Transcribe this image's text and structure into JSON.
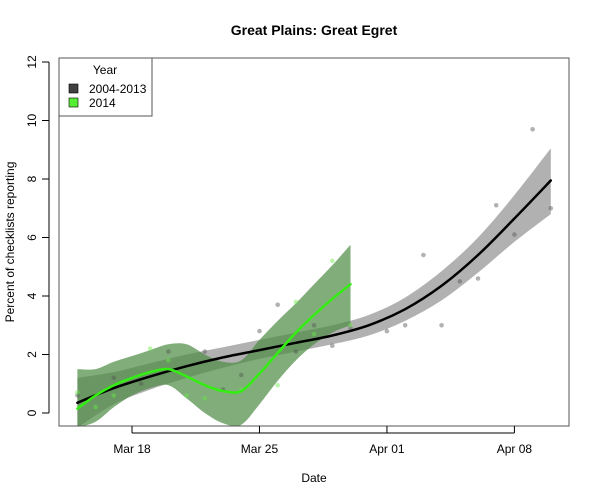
{
  "chart_data": {
    "type": "line",
    "title": "Great Plains: Great Egret",
    "xlabel": "Date",
    "ylabel": "Percent of checklists reporting",
    "ylim": [
      0,
      12
    ],
    "yticks": [
      0,
      2,
      4,
      6,
      8,
      10,
      12
    ],
    "xticks": [
      {
        "label": "Mar 18",
        "day": 18
      },
      {
        "label": "Mar 25",
        "day": 25
      },
      {
        "label": "Apr 01",
        "day": 32
      },
      {
        "label": "Apr 08",
        "day": 39
      }
    ],
    "x_unit": "day of March (Apr 1 = 32)",
    "grid": false,
    "legend": {
      "title": "Year",
      "position": "top-left",
      "entries": [
        {
          "label": "2004-2013",
          "color": "#404040"
        },
        {
          "label": "2014",
          "color": "#55ee33"
        }
      ]
    },
    "series": [
      {
        "name": "2004-2013",
        "line_color": "#000000",
        "band_color": "#a9a9a9",
        "x": [
          15,
          17,
          19,
          21,
          23,
          25,
          27,
          29,
          31,
          33,
          35,
          37,
          39,
          41
        ],
        "fit": [
          0.35,
          0.85,
          1.25,
          1.6,
          1.9,
          2.15,
          2.4,
          2.65,
          3.0,
          3.55,
          4.35,
          5.4,
          6.65,
          7.95
        ],
        "lower": [
          -0.5,
          0.3,
          0.8,
          1.2,
          1.55,
          1.85,
          2.1,
          2.35,
          2.65,
          3.15,
          3.85,
          4.8,
          5.85,
          6.8
        ],
        "upper": [
          1.2,
          1.4,
          1.7,
          2.0,
          2.25,
          2.5,
          2.75,
          3.0,
          3.35,
          3.95,
          4.85,
          6.0,
          7.45,
          9.05
        ],
        "points": [
          {
            "x": 15,
            "y": 0.6
          },
          {
            "x": 17,
            "y": 1.2
          },
          {
            "x": 18.5,
            "y": 1.0
          },
          {
            "x": 20,
            "y": 2.1
          },
          {
            "x": 22,
            "y": 2.1
          },
          {
            "x": 23,
            "y": 0.8
          },
          {
            "x": 24,
            "y": 1.3
          },
          {
            "x": 25,
            "y": 2.8
          },
          {
            "x": 26,
            "y": 3.7
          },
          {
            "x": 27,
            "y": 2.1
          },
          {
            "x": 28,
            "y": 3.0
          },
          {
            "x": 29,
            "y": 2.3
          },
          {
            "x": 30,
            "y": 2.9
          },
          {
            "x": 32,
            "y": 2.8
          },
          {
            "x": 33,
            "y": 3.0
          },
          {
            "x": 34,
            "y": 5.4
          },
          {
            "x": 35,
            "y": 3.0
          },
          {
            "x": 36,
            "y": 4.5
          },
          {
            "x": 37,
            "y": 4.6
          },
          {
            "x": 38,
            "y": 7.1
          },
          {
            "x": 39,
            "y": 6.1
          },
          {
            "x": 40,
            "y": 9.7
          },
          {
            "x": 41,
            "y": 7.0
          }
        ]
      },
      {
        "name": "2014",
        "line_color": "#33ee11",
        "band_color": "#4a8a40",
        "x": [
          15,
          16,
          17,
          18,
          19,
          20,
          21,
          22,
          23,
          24,
          25,
          26,
          27,
          28,
          29,
          30
        ],
        "fit": [
          0.15,
          0.6,
          0.95,
          1.2,
          1.4,
          1.5,
          1.25,
          0.95,
          0.75,
          0.75,
          1.35,
          2.05,
          2.75,
          3.35,
          3.9,
          4.4
        ],
        "lower": [
          -0.5,
          -0.3,
          0.2,
          0.6,
          0.85,
          0.95,
          0.5,
          0.0,
          -0.35,
          -0.4,
          0.3,
          1.1,
          1.8,
          2.35,
          2.75,
          3.0
        ],
        "upper": [
          1.5,
          1.5,
          1.75,
          1.95,
          2.15,
          2.35,
          2.35,
          2.0,
          1.75,
          1.8,
          2.5,
          3.15,
          3.75,
          4.4,
          5.05,
          5.75
        ],
        "points": [
          {
            "x": 15,
            "y": 0.7
          },
          {
            "x": 16,
            "y": 0.2
          },
          {
            "x": 17,
            "y": 0.6
          },
          {
            "x": 19,
            "y": 2.2
          },
          {
            "x": 20,
            "y": 1.8
          },
          {
            "x": 21,
            "y": 0.6
          },
          {
            "x": 22,
            "y": 0.5
          },
          {
            "x": 24,
            "y": 0.8
          },
          {
            "x": 26,
            "y": 0.95
          },
          {
            "x": 27,
            "y": 3.8
          },
          {
            "x": 28,
            "y": 2.7
          },
          {
            "x": 29,
            "y": 5.2
          },
          {
            "x": 30,
            "y": 3.0
          }
        ]
      }
    ]
  }
}
